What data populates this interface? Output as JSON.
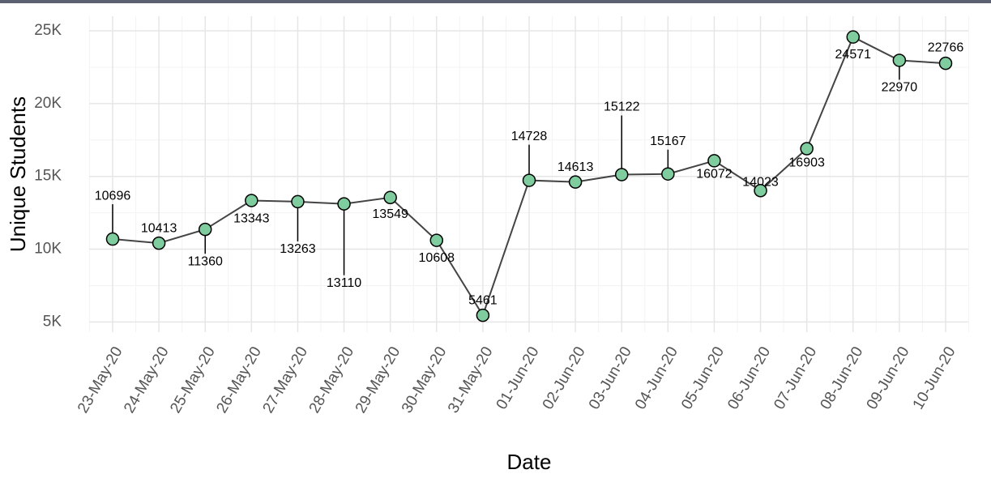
{
  "chart_data": {
    "type": "line",
    "x_label": "Date",
    "y_label": "Unique Students",
    "categories": [
      "23-May-20",
      "24-May-20",
      "25-May-20",
      "26-May-20",
      "27-May-20",
      "28-May-20",
      "29-May-20",
      "30-May-20",
      "31-May-20",
      "01-Jun-20",
      "02-Jun-20",
      "03-Jun-20",
      "04-Jun-20",
      "05-Jun-20",
      "06-Jun-20",
      "07-Jun-20",
      "08-Jun-20",
      "09-Jun-20",
      "10-Jun-20"
    ],
    "series": [
      {
        "name": "Unique Students",
        "color": "#444444",
        "marker_color": "#7fcd9e",
        "values": [
          10696,
          10413,
          11360,
          13343,
          13263,
          13110,
          13549,
          10608,
          5461,
          14728,
          14613,
          15122,
          15167,
          16072,
          14023,
          16903,
          24571,
          22970,
          22766
        ]
      }
    ],
    "ylim": [
      4300,
      26000
    ],
    "yticks": [
      {
        "value": 5000,
        "label": "5K"
      },
      {
        "value": 10000,
        "label": "10K"
      },
      {
        "value": 15000,
        "label": "15K"
      },
      {
        "value": 20000,
        "label": "20K"
      },
      {
        "value": 25000,
        "label": "25K"
      }
    ],
    "grid": true
  }
}
